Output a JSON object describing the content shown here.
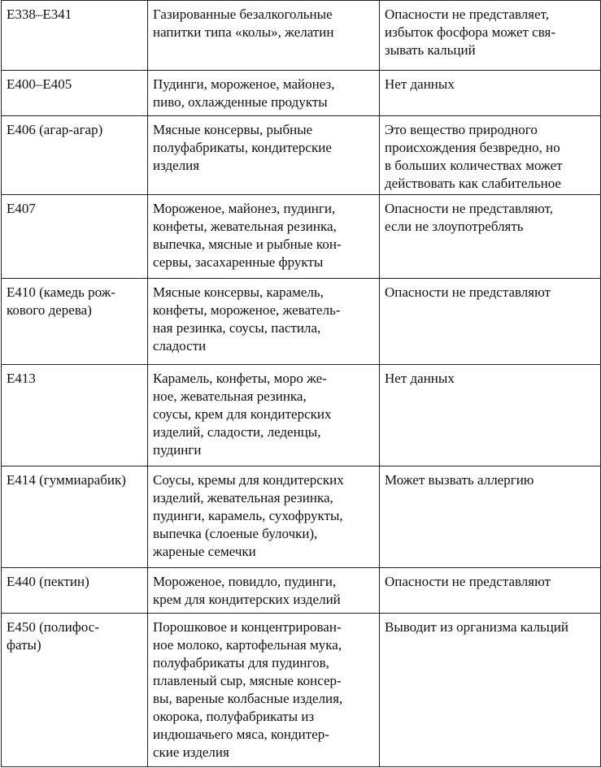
{
  "rows": [
    {
      "code": "Е338–Е341",
      "products": "Газированные безалкогольные\nнапитки типа «колы», желатин",
      "effect": "Опасности не представляет,\nизбыток фосфора может свя-\nзывать кальций"
    },
    {
      "code": "Е400–Е405",
      "products": "Пудинги, мороженое, майонез,\nпиво, охлажденные продукты",
      "effect": "Нет данных"
    },
    {
      "code": "Е406 (агар-агар)",
      "products": "Мясные консервы, рыбные\nполуфабрикаты, кондитерские\nизделия",
      "effect": "Это вещество природного\nпроисхождения безвредно, но\nв больших количествах может\nдействовать как слабительное"
    },
    {
      "code": "Е407",
      "products": "Мороженое, майонез, пудинги,\nконфеты, жевательная резинка,\nвыпечка, мясные и рыбные кон-\nсервы, засахаренные фрукты",
      "effect": "Опасности не представляют,\nесли не злоупотреблять"
    },
    {
      "code": "Е410 (камедь рож-\nкового дерева)",
      "products": "Мясные консервы, карамель,\nконфеты, мороженое, жеватель-\nная резинка, соусы, пастила,\nсладости",
      "effect": "Опасности не представляют"
    },
    {
      "code": "Е413",
      "products": "Карамель, конфеты, моро же-\nное, жевательная резинка,\nсоусы, крем для кондитерских\nизделий, сладости, леденцы,\nпудинги",
      "effect": "Нет данных"
    },
    {
      "code": "Е414 (гуммиарабик)",
      "products": "Соусы, кремы для кондитерских\nизделий, жевательная резинка,\nпудинги, карамель, сухофрукты,\nвыпечка (слоеные булочки),\nжареные семечки",
      "effect": "Может вызвать аллергию"
    },
    {
      "code": "Е440 (пектин)",
      "products": "Мороженое, повидло, пудинги,\nкрем для кондитерских изделий",
      "effect": "Опасности не представляют"
    },
    {
      "code": "Е450 (полифос-\nфаты)",
      "products": "Порошковое и концентрирован-\nное молоко, картофельная мука,\nполуфабрикаты для пудингов,\nплавленый сыр, мясные консер-\nвы, вареные колбасные изделия,\nокорока, полуфабрикаты из\nиндюшачьего мяса, кондитер-\nские изделия",
      "effect": "Выводит из организма кальций"
    }
  ]
}
